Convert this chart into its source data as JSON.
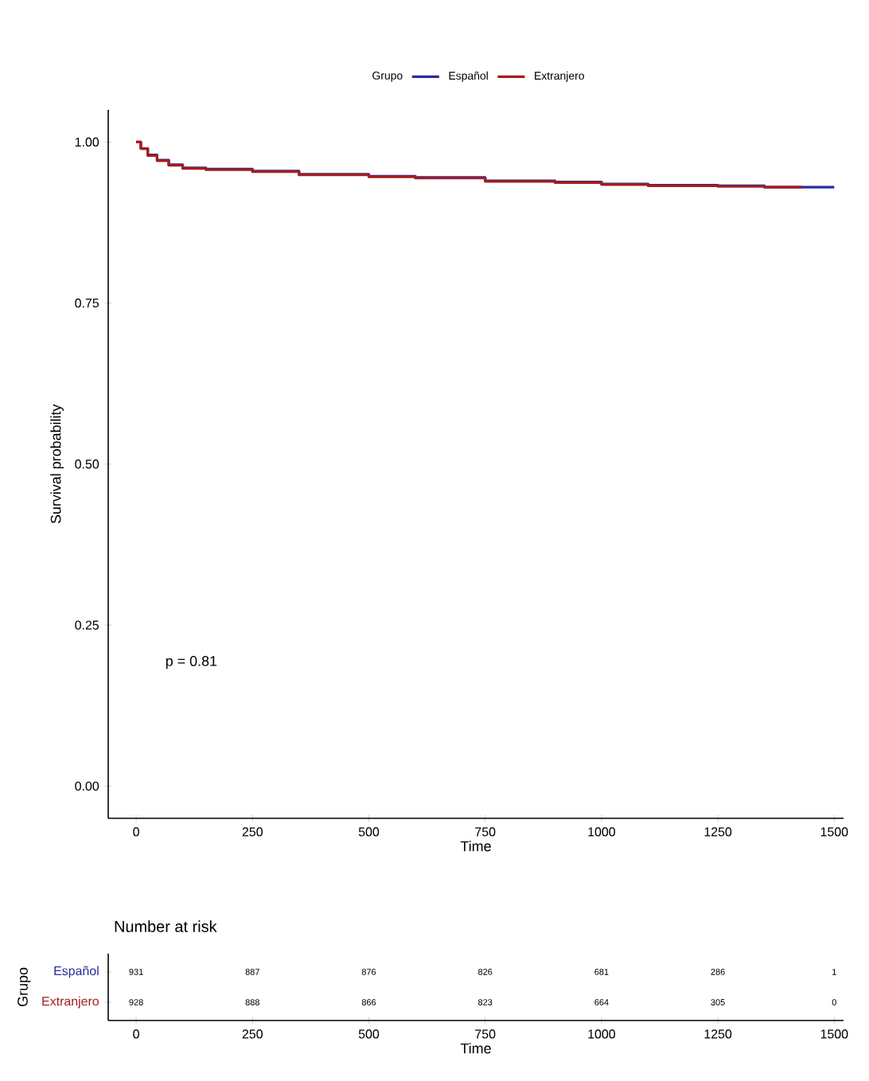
{
  "chart_data": [
    {
      "type": "step",
      "xlabel": "Time",
      "ylabel": "Survival probability",
      "legend_title": "Grupo",
      "legend": "top",
      "annotations": [
        "p = 0.81"
      ],
      "xlim": [
        -60,
        1520
      ],
      "ylim": [
        -0.05,
        1.05
      ],
      "xticks": [
        0,
        250,
        500,
        750,
        1000,
        1250,
        1500
      ],
      "yticks": [
        {
          "value": 0,
          "label": "0.00"
        },
        {
          "value": 0.25,
          "label": "0.25"
        },
        {
          "value": 0.5,
          "label": "0.50"
        },
        {
          "value": 0.75,
          "label": "0.75"
        },
        {
          "value": 1,
          "label": "1.00"
        }
      ],
      "series": [
        {
          "name": "Español",
          "color": "#2a2a9c",
          "x": [
            0,
            10,
            25,
            45,
            70,
            100,
            150,
            250,
            350,
            500,
            600,
            750,
            900,
            1000,
            1100,
            1250,
            1350,
            1500
          ],
          "values": [
            1.0,
            0.99,
            0.98,
            0.972,
            0.965,
            0.96,
            0.958,
            0.955,
            0.95,
            0.947,
            0.945,
            0.94,
            0.938,
            0.935,
            0.933,
            0.932,
            0.93,
            0.93
          ]
        },
        {
          "name": "Extranjero",
          "color": "#a51c1c",
          "x": [
            0,
            10,
            25,
            45,
            70,
            100,
            150,
            250,
            350,
            500,
            600,
            750,
            900,
            1000,
            1100,
            1250,
            1350,
            1430
          ],
          "values": [
            1.0,
            0.99,
            0.979,
            0.971,
            0.964,
            0.959,
            0.957,
            0.954,
            0.949,
            0.946,
            0.944,
            0.939,
            0.937,
            0.934,
            0.932,
            0.931,
            0.93,
            0.93
          ]
        }
      ]
    },
    {
      "type": "heatmap",
      "title": "Number at risk",
      "xlabel": "Time",
      "ylabel": "Grupo",
      "categories": [
        "0",
        "250",
        "500",
        "750",
        "1000",
        "1250",
        "1500"
      ],
      "y_categories": [
        "Español",
        "Extranjero"
      ],
      "cells": [
        [
          931,
          887,
          876,
          826,
          681,
          286,
          1
        ],
        [
          928,
          888,
          866,
          823,
          664,
          305,
          0
        ]
      ],
      "data_labels": true
    }
  ]
}
